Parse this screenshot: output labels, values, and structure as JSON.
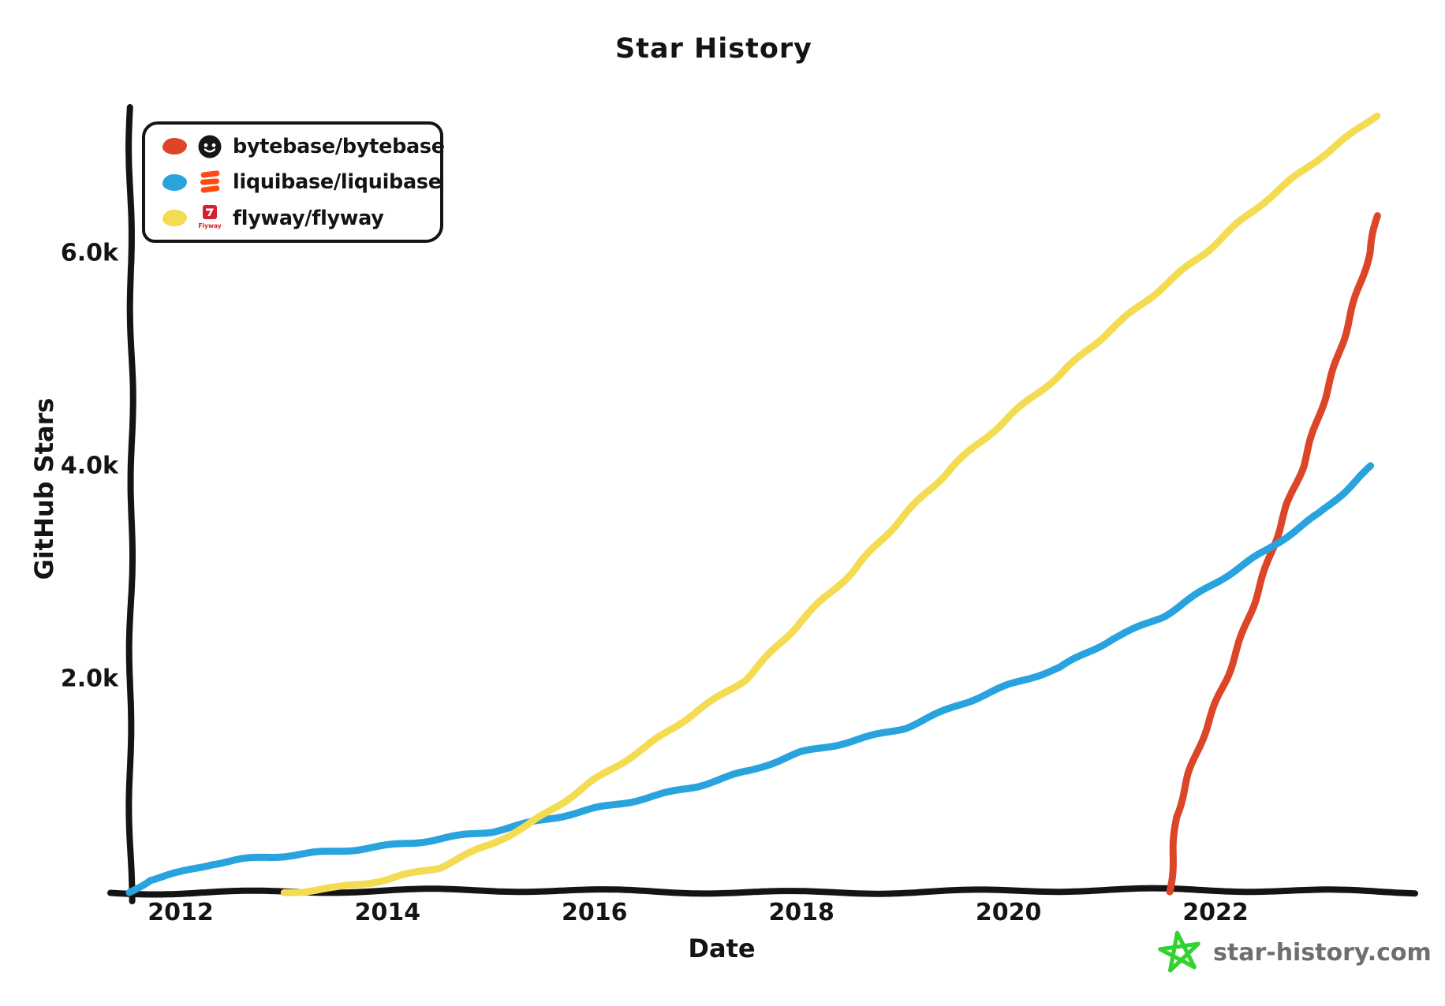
{
  "title": "Star History",
  "axes": {
    "y_label": "GitHub Stars",
    "x_label": "Date"
  },
  "legend": {
    "items": [
      {
        "label": "bytebase/bytebase",
        "color": "#dd4528",
        "icon": "bytebase-avatar-icon"
      },
      {
        "label": "liquibase/liquibase",
        "color": "#28a3dd",
        "icon": "liquibase-logo-icon"
      },
      {
        "label": "flyway/flyway",
        "color": "#f3db52",
        "icon": "flyway-logo-icon",
        "icon_text": "Flyway"
      }
    ]
  },
  "watermark": {
    "text": "star-history.com",
    "star_color": "#32d232",
    "text_color": "#6f6f6f"
  },
  "chart_data": {
    "type": "line",
    "title": "Star History",
    "xlabel": "Date",
    "ylabel": "GitHub Stars",
    "style": "hand-drawn-xkcd",
    "grid": false,
    "legend_position": "top-left",
    "x_range": [
      2011.45,
      2023.7
    ],
    "y_range": [
      0,
      7400
    ],
    "x_ticks": [
      {
        "value": 2012,
        "label": "2012"
      },
      {
        "value": 2014,
        "label": "2014"
      },
      {
        "value": 2016,
        "label": "2016"
      },
      {
        "value": 2018,
        "label": "2018"
      },
      {
        "value": 2020,
        "label": "2020"
      },
      {
        "value": 2022,
        "label": "2022"
      }
    ],
    "y_ticks": [
      {
        "value": 2000,
        "label": "2.0k"
      },
      {
        "value": 4000,
        "label": "4.0k"
      },
      {
        "value": 6000,
        "label": "6.0k"
      }
    ],
    "series": [
      {
        "name": "bytebase/bytebase",
        "color": "#dd4528",
        "points": [
          [
            2021.55,
            0
          ],
          [
            2021.62,
            700
          ],
          [
            2021.75,
            1100
          ],
          [
            2022.0,
            1750
          ],
          [
            2022.1,
            2000
          ],
          [
            2022.3,
            2550
          ],
          [
            2022.5,
            3070
          ],
          [
            2022.7,
            3620
          ],
          [
            2022.85,
            4000
          ],
          [
            2023.0,
            4500
          ],
          [
            2023.2,
            5100
          ],
          [
            2023.35,
            5550
          ],
          [
            2023.5,
            6000
          ],
          [
            2023.57,
            6350
          ]
        ]
      },
      {
        "name": "liquibase/liquibase",
        "color": "#28a3dd",
        "points": [
          [
            2011.5,
            0
          ],
          [
            2011.7,
            120
          ],
          [
            2012.0,
            185
          ],
          [
            2012.3,
            260
          ],
          [
            2012.6,
            295
          ],
          [
            2013.0,
            330
          ],
          [
            2013.5,
            380
          ],
          [
            2014.0,
            440
          ],
          [
            2014.5,
            500
          ],
          [
            2015.0,
            560
          ],
          [
            2015.35,
            630
          ],
          [
            2016.0,
            780
          ],
          [
            2016.5,
            890
          ],
          [
            2017.0,
            1000
          ],
          [
            2017.5,
            1130
          ],
          [
            2018.0,
            1300
          ],
          [
            2018.5,
            1420
          ],
          [
            2019.0,
            1550
          ],
          [
            2019.5,
            1750
          ],
          [
            2020.0,
            1930
          ],
          [
            2020.5,
            2100
          ],
          [
            2021.0,
            2380
          ],
          [
            2021.5,
            2600
          ],
          [
            2022.0,
            2900
          ],
          [
            2022.5,
            3200
          ],
          [
            2023.0,
            3550
          ],
          [
            2023.5,
            4000
          ]
        ]
      },
      {
        "name": "flyway/flyway",
        "color": "#f3db52",
        "points": [
          [
            2013.0,
            0
          ],
          [
            2013.5,
            40
          ],
          [
            2014.0,
            110
          ],
          [
            2014.5,
            220
          ],
          [
            2015.0,
            450
          ],
          [
            2015.35,
            630
          ],
          [
            2016.0,
            1050
          ],
          [
            2016.5,
            1350
          ],
          [
            2017.0,
            1700
          ],
          [
            2017.45,
            2000
          ],
          [
            2018.0,
            2550
          ],
          [
            2018.5,
            3000
          ],
          [
            2019.0,
            3550
          ],
          [
            2019.45,
            4000
          ],
          [
            2020.0,
            4450
          ],
          [
            2020.5,
            4850
          ],
          [
            2021.0,
            5300
          ],
          [
            2021.5,
            5700
          ],
          [
            2021.9,
            6000
          ],
          [
            2022.5,
            6500
          ],
          [
            2023.0,
            6900
          ],
          [
            2023.55,
            7300
          ]
        ]
      }
    ]
  }
}
